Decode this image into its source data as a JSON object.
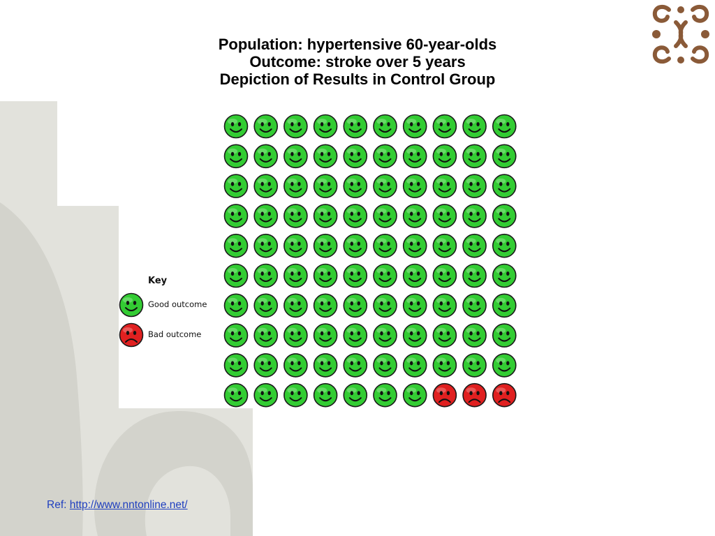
{
  "slide": {
    "title_lines": [
      "Population: hypertensive 60-year-olds",
      "Outcome: stroke over 5 years",
      "Depiction of Results in Control Group"
    ],
    "ref_prefix": "Ref:  ",
    "ref_link": "http://www.nntonline.net/"
  },
  "colors": {
    "good": "#33cc33",
    "bad": "#e02020",
    "background_shape": "#e2e2dc"
  },
  "icons": {
    "good": "smiley-face-icon",
    "bad": "frowny-face-icon",
    "logo": "ornamental-swirl-logo"
  },
  "chart_data": {
    "type": "icon-array",
    "title": "Depiction of Results in Control Group",
    "total": 100,
    "rows": 10,
    "columns": 10,
    "categories": [
      "Good outcome",
      "Bad outcome"
    ],
    "values": [
      97,
      3
    ],
    "legend": {
      "title": "Key",
      "placement": "left",
      "entries": [
        {
          "label": "Good outcome",
          "status": "good"
        },
        {
          "label": "Bad outcome",
          "status": "bad"
        }
      ]
    }
  }
}
